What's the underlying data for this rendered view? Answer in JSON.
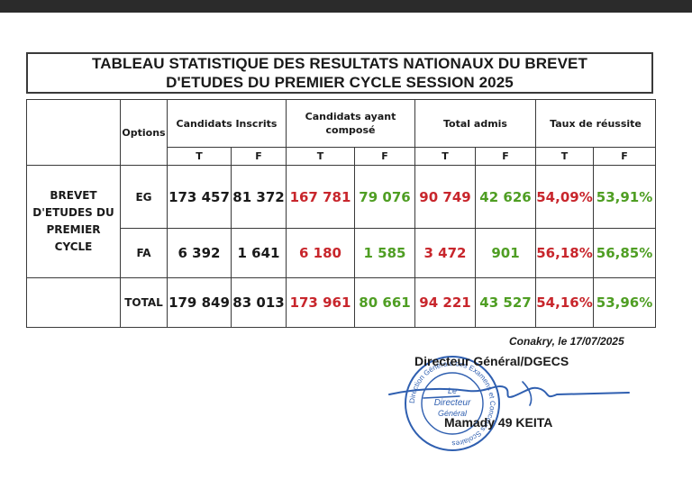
{
  "title": {
    "line1": "TABLEAU STATISTIQUE DES RESULTATS NATIONAUX  DU BREVET",
    "line2": "D'ETUDES DU PREMIER CYCLE SESSION 2025"
  },
  "table": {
    "header": {
      "options": "Options",
      "candidats_inscrits": "Candidats Inscrits",
      "candidats_ayant_compose": "Candidats ayant composé",
      "total_admis": "Total admis",
      "taux_reussite": "Taux de réussite",
      "sub": [
        "T",
        "F",
        "T",
        "F",
        "T",
        "F",
        "T",
        "F"
      ]
    },
    "row_label": [
      "BREVET",
      "D'ETUDES DU",
      "PREMIER CYCLE"
    ],
    "rows": [
      {
        "option": "EG",
        "values": [
          "173 457",
          "81 372",
          "167 781",
          "79 076",
          "90 749",
          "42 626",
          "54,09%",
          "53,91%"
        ]
      },
      {
        "option": "FA",
        "values": [
          "6 392",
          "1 641",
          "6 180",
          "1 585",
          "3 472",
          "901",
          "56,18%",
          "56,85%"
        ]
      },
      {
        "option": "TOTAL",
        "values": [
          "179 849",
          "83 013",
          "173 961",
          "80 661",
          "94 221",
          "43 527",
          "54,16%",
          "53,96%"
        ]
      }
    ]
  },
  "footer": {
    "place_date": "Conakry, le 17/07/2025",
    "title": "Directeur Général/DGECS",
    "name": "Mamady 49 KEITA"
  },
  "stamp": {
    "center": [
      "Le",
      "Directeur",
      "Général"
    ],
    "ring": "Direction Générale des Examens et Concours Scolaires"
  },
  "colors": {
    "total_column": "#1a1a1a",
    "T_column": "#c8262c",
    "F_column": "#4f9e23",
    "stamp": "#2f5fb0"
  }
}
